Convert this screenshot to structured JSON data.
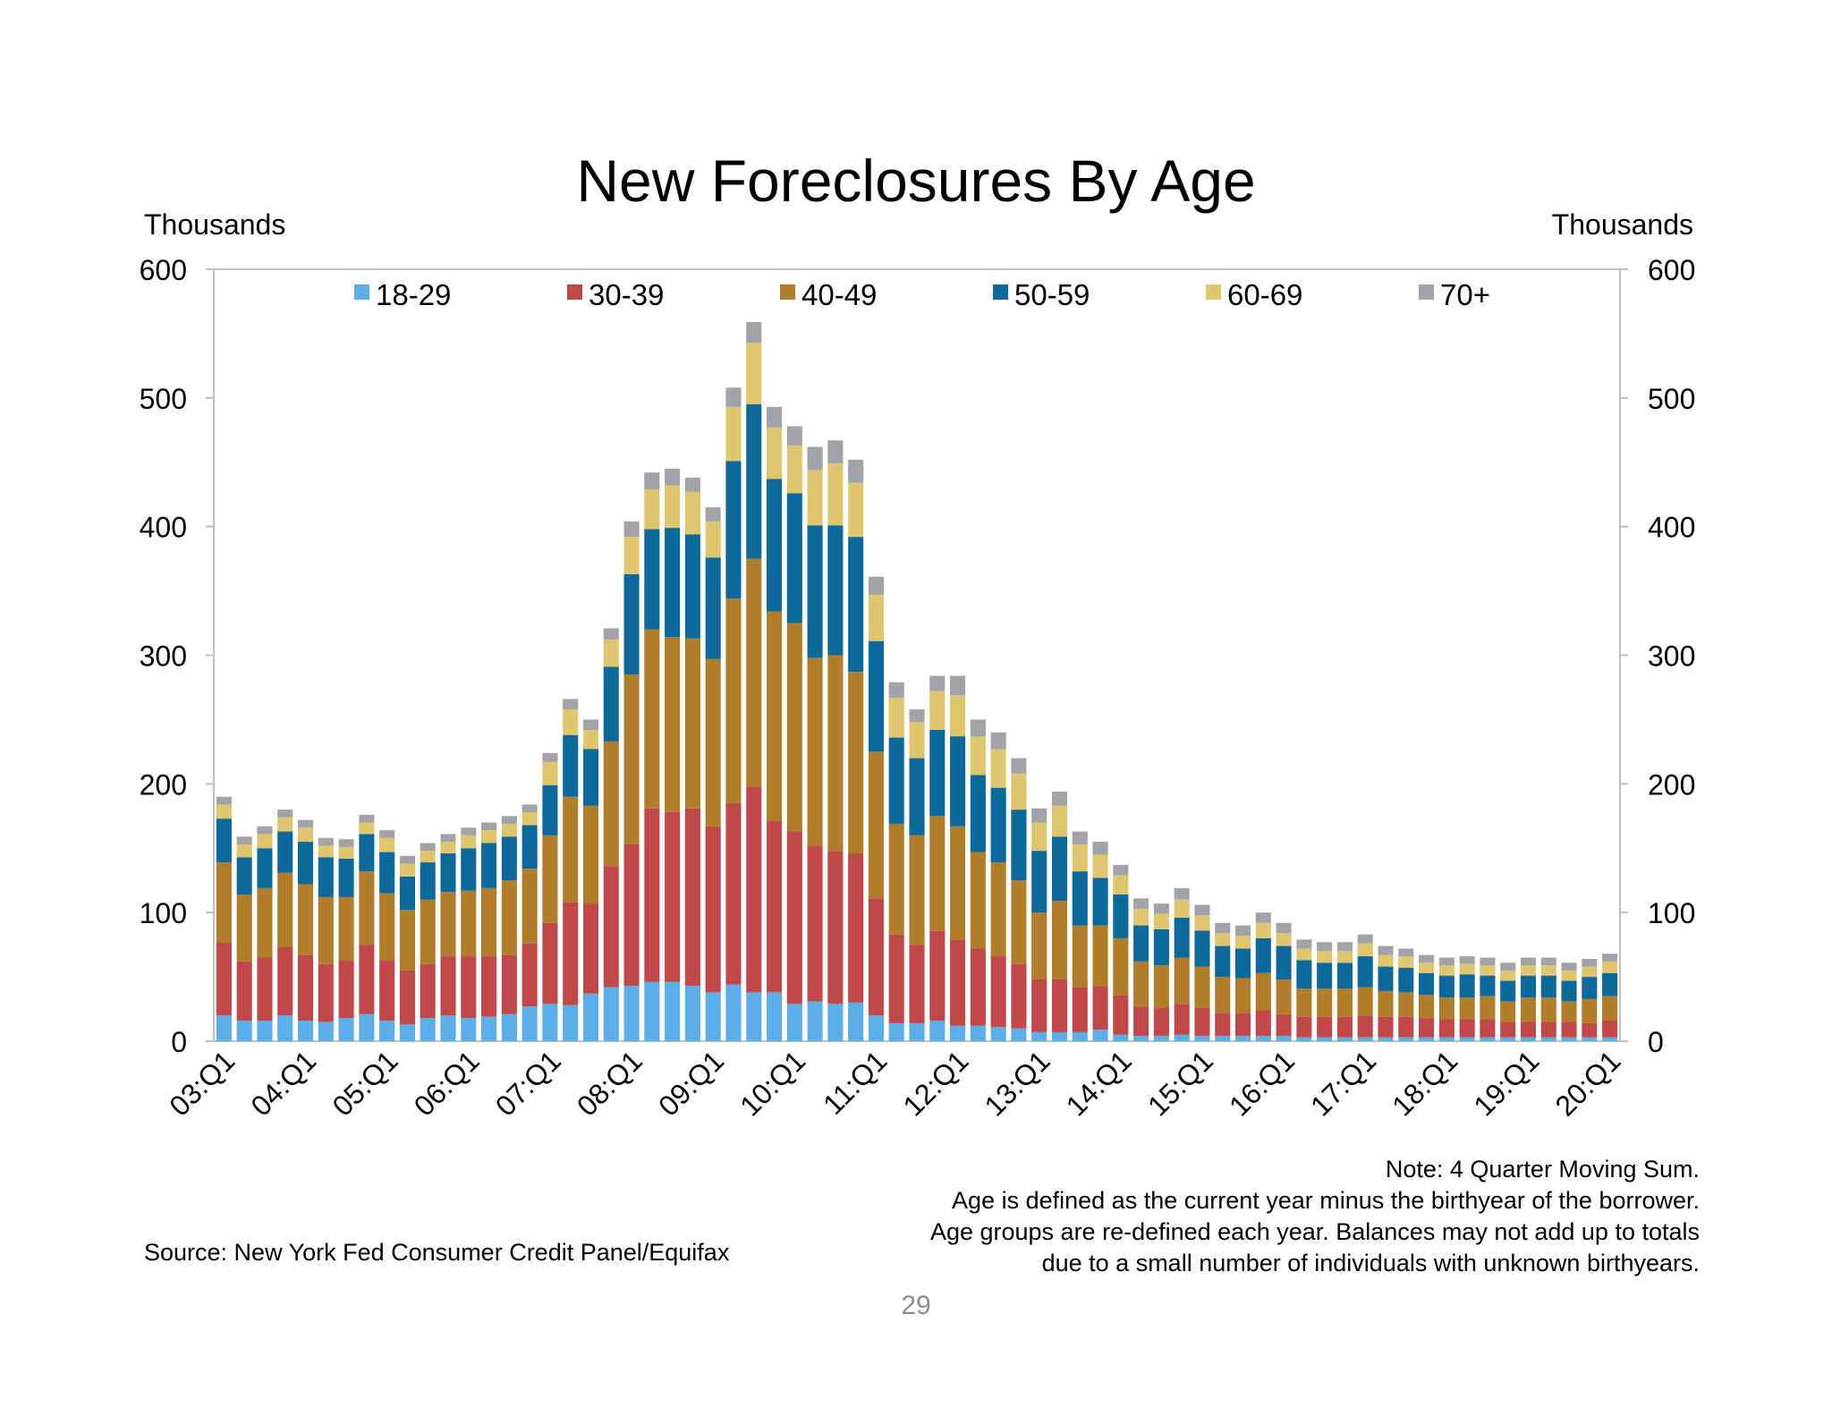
{
  "slide": {
    "notes": [
      "Note: 4 Quarter Moving Sum.",
      "Age is defined as the current year minus the birthyear of the borrower.",
      "Age groups are re-defined each year. Balances may not add up to totals",
      "due to a small number of individuals with unknown birthyears."
    ],
    "source": "Source: New York Fed Consumer Credit Panel/Equifax",
    "page_number": "29"
  },
  "chart_data": {
    "type": "bar",
    "stacked": true,
    "title": "New Foreclosures By Age",
    "ylabel_left": "Thousands",
    "ylabel_right": "Thousands",
    "ylim": [
      0,
      600
    ],
    "yticks": [
      0,
      100,
      200,
      300,
      400,
      500,
      600
    ],
    "legend_position": "top",
    "categories": [
      "03:Q1",
      "03:Q2",
      "03:Q3",
      "03:Q4",
      "04:Q1",
      "04:Q2",
      "04:Q3",
      "04:Q4",
      "05:Q1",
      "05:Q2",
      "05:Q3",
      "05:Q4",
      "06:Q1",
      "06:Q2",
      "06:Q3",
      "06:Q4",
      "07:Q1",
      "07:Q2",
      "07:Q3",
      "07:Q4",
      "08:Q1",
      "08:Q2",
      "08:Q3",
      "08:Q4",
      "09:Q1",
      "09:Q2",
      "09:Q3",
      "09:Q4",
      "10:Q1",
      "10:Q2",
      "10:Q3",
      "10:Q4",
      "11:Q1",
      "11:Q2",
      "11:Q3",
      "11:Q4",
      "12:Q1",
      "12:Q2",
      "12:Q3",
      "12:Q4",
      "13:Q1",
      "13:Q2",
      "13:Q3",
      "13:Q4",
      "14:Q1",
      "14:Q2",
      "14:Q3",
      "14:Q4",
      "15:Q1",
      "15:Q2",
      "15:Q3",
      "15:Q4",
      "16:Q1",
      "16:Q2",
      "16:Q3",
      "16:Q4",
      "17:Q1",
      "17:Q2",
      "17:Q3",
      "17:Q4",
      "18:Q1",
      "18:Q2",
      "18:Q3",
      "18:Q4",
      "19:Q1",
      "19:Q2",
      "19:Q3",
      "19:Q4",
      "20:Q1"
    ],
    "xtick_labels": [
      "03:Q1",
      "04:Q1",
      "05:Q1",
      "06:Q1",
      "07:Q1",
      "08:Q1",
      "09:Q1",
      "10:Q1",
      "11:Q1",
      "12:Q1",
      "13:Q1",
      "14:Q1",
      "15:Q1",
      "16:Q1",
      "17:Q1",
      "18:Q1",
      "19:Q1",
      "20:Q1"
    ],
    "series": [
      {
        "name": "18-29",
        "color": "#5BAEE8",
        "values": [
          20,
          16,
          16,
          20,
          16,
          15,
          18,
          21,
          16,
          13,
          18,
          20,
          18,
          19,
          21,
          27,
          29,
          28,
          37,
          42,
          43,
          46,
          46,
          43,
          38,
          44,
          38,
          38,
          29,
          31,
          29,
          30,
          20,
          14,
          14,
          16,
          12,
          12,
          11,
          10,
          7,
          7,
          7,
          9,
          5,
          4,
          4,
          5,
          4,
          4,
          4,
          4,
          4,
          3,
          3,
          3,
          3,
          3,
          3,
          3,
          3,
          3,
          3,
          3,
          3,
          3,
          3,
          3,
          3
        ]
      },
      {
        "name": "30-39",
        "color": "#C0484A",
        "values": [
          57,
          46,
          49,
          53,
          51,
          45,
          45,
          54,
          47,
          42,
          42,
          46,
          48,
          47,
          46,
          49,
          63,
          80,
          70,
          94,
          110,
          135,
          132,
          138,
          129,
          141,
          160,
          133,
          134,
          121,
          119,
          116,
          91,
          69,
          61,
          70,
          67,
          60,
          55,
          50,
          41,
          41,
          35,
          34,
          31,
          23,
          22,
          24,
          22,
          18,
          18,
          20,
          17,
          16,
          16,
          16,
          17,
          16,
          16,
          15,
          14,
          14,
          14,
          12,
          12,
          12,
          12,
          11,
          13
        ]
      },
      {
        "name": "40-49",
        "color": "#B07E2B",
        "values": [
          62,
          52,
          54,
          58,
          55,
          52,
          49,
          57,
          52,
          47,
          50,
          50,
          51,
          53,
          58,
          58,
          68,
          82,
          76,
          97,
          132,
          139,
          136,
          132,
          130,
          159,
          177,
          163,
          162,
          146,
          152,
          141,
          114,
          86,
          85,
          89,
          88,
          75,
          73,
          65,
          52,
          61,
          48,
          47,
          44,
          35,
          33,
          36,
          32,
          28,
          27,
          29,
          27,
          22,
          22,
          22,
          22,
          20,
          19,
          18,
          17,
          17,
          18,
          16,
          19,
          19,
          16,
          19,
          19
        ]
      },
      {
        "name": "50-59",
        "color": "#0D689C",
        "values": [
          34,
          29,
          31,
          32,
          33,
          31,
          30,
          29,
          32,
          26,
          29,
          30,
          33,
          35,
          34,
          34,
          39,
          48,
          44,
          58,
          78,
          78,
          85,
          81,
          79,
          107,
          120,
          103,
          101,
          103,
          101,
          105,
          86,
          67,
          60,
          67,
          70,
          60,
          58,
          55,
          48,
          50,
          42,
          37,
          34,
          28,
          28,
          31,
          28,
          24,
          23,
          27,
          26,
          22,
          20,
          20,
          24,
          19,
          19,
          17,
          17,
          18,
          16,
          16,
          17,
          17,
          16,
          17,
          18
        ]
      },
      {
        "name": "60-69",
        "color": "#DFC56D",
        "values": [
          11,
          10,
          11,
          11,
          11,
          9,
          9,
          9,
          11,
          10,
          9,
          9,
          10,
          10,
          10,
          10,
          18,
          20,
          15,
          21,
          29,
          31,
          33,
          33,
          28,
          42,
          48,
          40,
          37,
          43,
          48,
          42,
          36,
          31,
          28,
          30,
          32,
          30,
          30,
          28,
          22,
          24,
          21,
          18,
          15,
          13,
          12,
          14,
          12,
          10,
          10,
          12,
          10,
          9,
          9,
          9,
          10,
          9,
          9,
          8,
          8,
          8,
          8,
          8,
          8,
          8,
          8,
          8,
          9
        ]
      },
      {
        "name": "70+",
        "color": "#A0A3A8",
        "values": [
          6,
          6,
          6,
          6,
          6,
          6,
          6,
          6,
          6,
          6,
          6,
          6,
          6,
          6,
          6,
          6,
          7,
          8,
          8,
          9,
          12,
          13,
          13,
          11,
          11,
          15,
          16,
          16,
          15,
          18,
          18,
          18,
          14,
          12,
          10,
          12,
          15,
          13,
          13,
          12,
          11,
          11,
          10,
          10,
          8,
          8,
          8,
          9,
          8,
          8,
          8,
          8,
          8,
          7,
          7,
          7,
          7,
          7,
          6,
          6,
          6,
          6,
          6,
          6,
          6,
          6,
          6,
          6,
          6
        ]
      }
    ]
  }
}
